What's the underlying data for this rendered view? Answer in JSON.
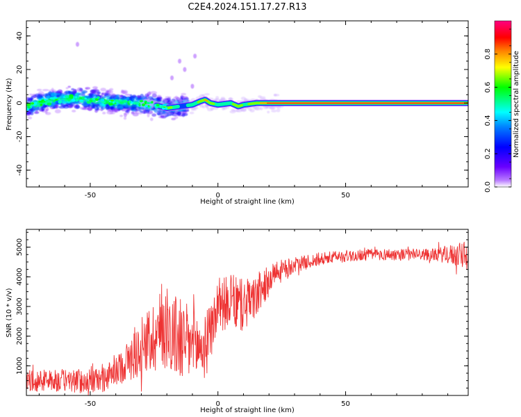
{
  "title": "C2E4.2024.151.17.27.R13",
  "colorbar": {
    "label": "Normalized spectral amplitude",
    "ticks": [
      0.0,
      0.2,
      0.4,
      0.6,
      0.8
    ],
    "tick_labels": [
      "0.0",
      "0.2",
      "0.4",
      "0.6",
      "0.8"
    ],
    "colormap": [
      "#ffffff",
      "#6a00ff",
      "#0000ff",
      "#00ffff",
      "#00ff00",
      "#ffff00",
      "#ff8000",
      "#ff0000",
      "#ff0080"
    ]
  },
  "chart_data": [
    {
      "type": "heatmap",
      "xlabel": "Height of straight line (km)",
      "ylabel": "Frequency (Hz)",
      "xlim": [
        -75,
        98
      ],
      "ylim": [
        -50,
        49
      ],
      "x_ticks": [
        -50,
        0,
        50
      ],
      "x_tick_labels": [
        "-50",
        "0",
        "50"
      ],
      "y_ticks": [
        -40,
        -20,
        0,
        20,
        40
      ],
      "y_tick_labels": [
        "-40",
        "-20",
        "0",
        "20",
        "40"
      ],
      "ridge": {
        "x": [
          -75,
          -65,
          -55,
          -45,
          -35,
          -25,
          -20,
          -15,
          -10,
          -7,
          -5,
          -3,
          0,
          5,
          8,
          10,
          15,
          20,
          30,
          50,
          70,
          98
        ],
        "y": [
          -2,
          2,
          3,
          1,
          0,
          -1,
          -3,
          -2,
          -1,
          1,
          2,
          0,
          -1,
          0,
          -2,
          -1,
          0,
          0,
          0,
          0,
          0,
          0
        ],
        "amplitude": [
          0.4,
          0.4,
          0.45,
          0.42,
          0.4,
          0.45,
          0.75,
          0.45,
          0.5,
          0.7,
          0.8,
          0.75,
          0.55,
          0.6,
          0.75,
          0.6,
          0.7,
          0.95,
          0.98,
          0.98,
          0.98,
          0.98
        ]
      },
      "scatter_band": {
        "x_range": [
          -75,
          -20
        ],
        "spread_hz": 12
      },
      "outliers": [
        {
          "x": -15,
          "y": 25
        },
        {
          "x": -9,
          "y": 28
        },
        {
          "x": -13,
          "y": 20
        },
        {
          "x": -18,
          "y": 15
        },
        {
          "x": -55,
          "y": 35
        },
        {
          "x": -10,
          "y": 10
        }
      ]
    },
    {
      "type": "line",
      "xlabel": "Height of straight line (km)",
      "ylabel": "SNR (10 * v/v)",
      "xlim": [
        -75,
        98
      ],
      "ylim": [
        0,
        5600
      ],
      "x_ticks": [
        -50,
        0,
        50
      ],
      "x_tick_labels": [
        "-50",
        "0",
        "50"
      ],
      "y_ticks": [
        1000,
        2000,
        3000,
        4000,
        5000
      ],
      "y_tick_labels": [
        "1000",
        "2000",
        "3000",
        "4000",
        "5000"
      ],
      "color": "#ee3333",
      "trend": {
        "x": [
          -75,
          -60,
          -50,
          -45,
          -40,
          -35,
          -30,
          -25,
          -20,
          -15,
          -10,
          -5,
          0,
          5,
          10,
          15,
          20,
          25,
          30,
          40,
          50,
          60,
          70,
          80,
          90,
          98
        ],
        "y": [
          500,
          500,
          480,
          550,
          800,
          1200,
          1600,
          2000,
          2400,
          1800,
          1700,
          1600,
          3000,
          3200,
          3000,
          3300,
          3900,
          4200,
          4400,
          4600,
          4700,
          4750,
          4750,
          4750,
          4750,
          4700
        ]
      },
      "noise": {
        "x": [
          -75,
          -40,
          -30,
          -20,
          -10,
          0,
          10,
          20,
          30,
          50,
          85,
          98
        ],
        "amplitude": [
          350,
          450,
          1000,
          1500,
          1300,
          900,
          900,
          500,
          250,
          200,
          200,
          500
        ]
      },
      "n_samples": 1200
    }
  ]
}
